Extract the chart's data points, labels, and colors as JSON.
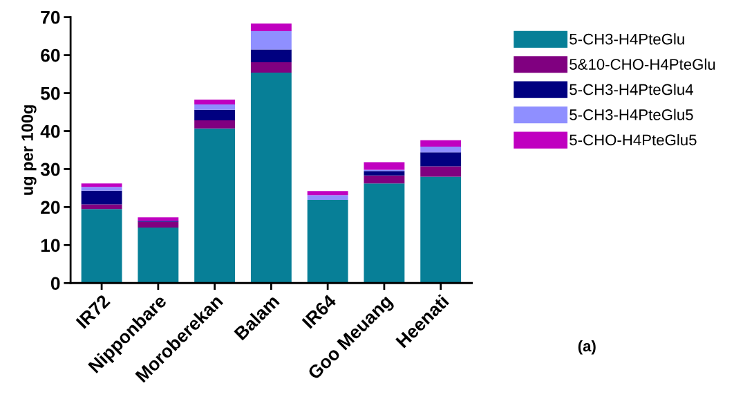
{
  "chart_data": {
    "type": "bar",
    "stacked": true,
    "ylabel": "ug per 100g",
    "categories": [
      "IR72",
      "Nipponbare",
      "Moroberekan",
      "Balam",
      "IR64",
      "Goo Meuang",
      "Heenati"
    ],
    "series": [
      {
        "name": "5-CH3-H4PteGlu",
        "color": "#077f97",
        "values": [
          19.5,
          14.6,
          40.7,
          55.4,
          21.9,
          26.2,
          28.0
        ]
      },
      {
        "name": "5&10-CHO-H4PteGlu",
        "color": "#800080",
        "values": [
          1.2,
          1.5,
          2.1,
          2.7,
          0,
          2.1,
          2.7
        ]
      },
      {
        "name": "5-CH3-H4PteGlu4",
        "color": "#000080",
        "values": [
          3.6,
          0.3,
          2.8,
          3.4,
          0,
          1.2,
          3.7
        ]
      },
      {
        "name": "5-CH3-H4PteGlu5",
        "color": "#8f8fff",
        "values": [
          1.0,
          0,
          1.4,
          4.8,
          1.2,
          0.3,
          1.5
        ]
      },
      {
        "name": "5-CHO-H4PteGlu5",
        "color": "#c000c0",
        "values": [
          0.9,
          0.9,
          1.3,
          2.0,
          1.1,
          2.0,
          1.7
        ]
      }
    ],
    "ylim": [
      0,
      70
    ],
    "yticks": [
      0,
      10,
      20,
      30,
      40,
      50,
      60,
      70
    ],
    "grid": false,
    "legend": "top right",
    "annotations": [
      "(a)"
    ]
  }
}
